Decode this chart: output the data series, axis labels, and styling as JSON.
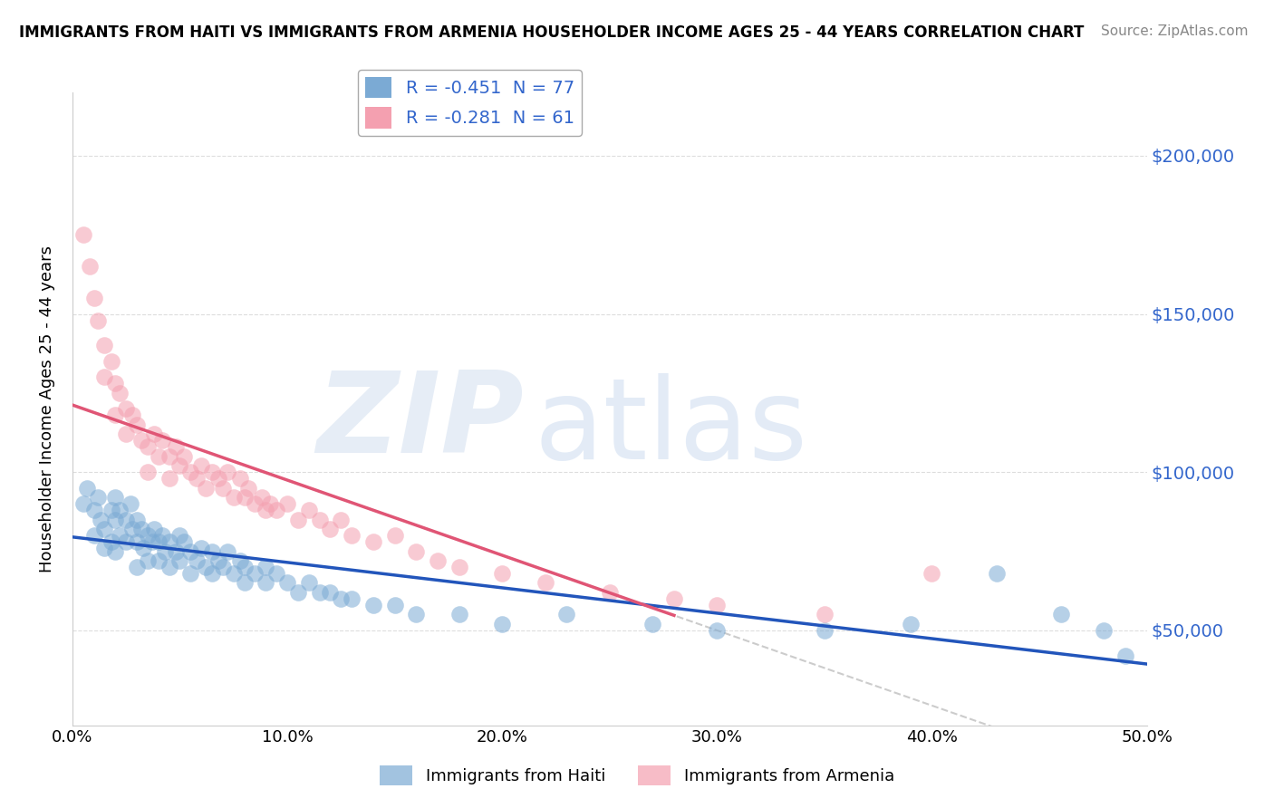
{
  "title": "IMMIGRANTS FROM HAITI VS IMMIGRANTS FROM ARMENIA HOUSEHOLDER INCOME AGES 25 - 44 YEARS CORRELATION CHART",
  "source": "Source: ZipAtlas.com",
  "ylabel": "Householder Income Ages 25 - 44 years",
  "xlabel_ticks": [
    "0.0%",
    "10.0%",
    "20.0%",
    "30.0%",
    "40.0%",
    "50.0%"
  ],
  "ylabel_ticks": [
    "$50,000",
    "$100,000",
    "$150,000",
    "$200,000"
  ],
  "ylabel_values": [
    50000,
    100000,
    150000,
    200000
  ],
  "xlim": [
    0.0,
    0.5
  ],
  "ylim": [
    20000,
    220000
  ],
  "haiti_R": -0.451,
  "haiti_N": 77,
  "armenia_R": -0.281,
  "armenia_N": 61,
  "haiti_color": "#7BAAD4",
  "armenia_color": "#F4A0B0",
  "haiti_line_color": "#2255BB",
  "armenia_line_color": "#E05575",
  "dashed_line_color": "#CCCCCC",
  "watermark_zip": "ZIP",
  "watermark_atlas": "atlas",
  "watermark_color_zip": "#C8D8E8",
  "watermark_color_atlas": "#B0CCEE",
  "legend_label_haiti": "Immigrants from Haiti",
  "legend_label_armenia": "Immigrants from Armenia",
  "haiti_x": [
    0.005,
    0.007,
    0.01,
    0.01,
    0.012,
    0.013,
    0.015,
    0.015,
    0.018,
    0.018,
    0.02,
    0.02,
    0.02,
    0.022,
    0.022,
    0.025,
    0.025,
    0.027,
    0.028,
    0.03,
    0.03,
    0.03,
    0.032,
    0.033,
    0.035,
    0.035,
    0.037,
    0.038,
    0.04,
    0.04,
    0.042,
    0.043,
    0.045,
    0.045,
    0.048,
    0.05,
    0.05,
    0.052,
    0.055,
    0.055,
    0.058,
    0.06,
    0.062,
    0.065,
    0.065,
    0.068,
    0.07,
    0.072,
    0.075,
    0.078,
    0.08,
    0.08,
    0.085,
    0.09,
    0.09,
    0.095,
    0.1,
    0.105,
    0.11,
    0.115,
    0.12,
    0.125,
    0.13,
    0.14,
    0.15,
    0.16,
    0.18,
    0.2,
    0.23,
    0.27,
    0.3,
    0.35,
    0.39,
    0.43,
    0.46,
    0.48,
    0.49
  ],
  "haiti_y": [
    90000,
    95000,
    88000,
    80000,
    92000,
    85000,
    82000,
    76000,
    88000,
    78000,
    92000,
    85000,
    75000,
    88000,
    80000,
    85000,
    78000,
    90000,
    82000,
    85000,
    78000,
    70000,
    82000,
    76000,
    80000,
    72000,
    78000,
    82000,
    78000,
    72000,
    80000,
    75000,
    78000,
    70000,
    75000,
    80000,
    72000,
    78000,
    75000,
    68000,
    72000,
    76000,
    70000,
    75000,
    68000,
    72000,
    70000,
    75000,
    68000,
    72000,
    70000,
    65000,
    68000,
    70000,
    65000,
    68000,
    65000,
    62000,
    65000,
    62000,
    62000,
    60000,
    60000,
    58000,
    58000,
    55000,
    55000,
    52000,
    55000,
    52000,
    50000,
    50000,
    52000,
    68000,
    55000,
    50000,
    42000
  ],
  "armenia_x": [
    0.005,
    0.008,
    0.01,
    0.012,
    0.015,
    0.015,
    0.018,
    0.02,
    0.02,
    0.022,
    0.025,
    0.025,
    0.028,
    0.03,
    0.032,
    0.035,
    0.035,
    0.038,
    0.04,
    0.042,
    0.045,
    0.045,
    0.048,
    0.05,
    0.052,
    0.055,
    0.058,
    0.06,
    0.062,
    0.065,
    0.068,
    0.07,
    0.072,
    0.075,
    0.078,
    0.08,
    0.082,
    0.085,
    0.088,
    0.09,
    0.092,
    0.095,
    0.1,
    0.105,
    0.11,
    0.115,
    0.12,
    0.125,
    0.13,
    0.14,
    0.15,
    0.16,
    0.17,
    0.18,
    0.2,
    0.22,
    0.25,
    0.28,
    0.3,
    0.35,
    0.4
  ],
  "armenia_y": [
    175000,
    165000,
    155000,
    148000,
    140000,
    130000,
    135000,
    128000,
    118000,
    125000,
    120000,
    112000,
    118000,
    115000,
    110000,
    108000,
    100000,
    112000,
    105000,
    110000,
    105000,
    98000,
    108000,
    102000,
    105000,
    100000,
    98000,
    102000,
    95000,
    100000,
    98000,
    95000,
    100000,
    92000,
    98000,
    92000,
    95000,
    90000,
    92000,
    88000,
    90000,
    88000,
    90000,
    85000,
    88000,
    85000,
    82000,
    85000,
    80000,
    78000,
    80000,
    75000,
    72000,
    70000,
    68000,
    65000,
    62000,
    60000,
    58000,
    55000,
    68000
  ]
}
